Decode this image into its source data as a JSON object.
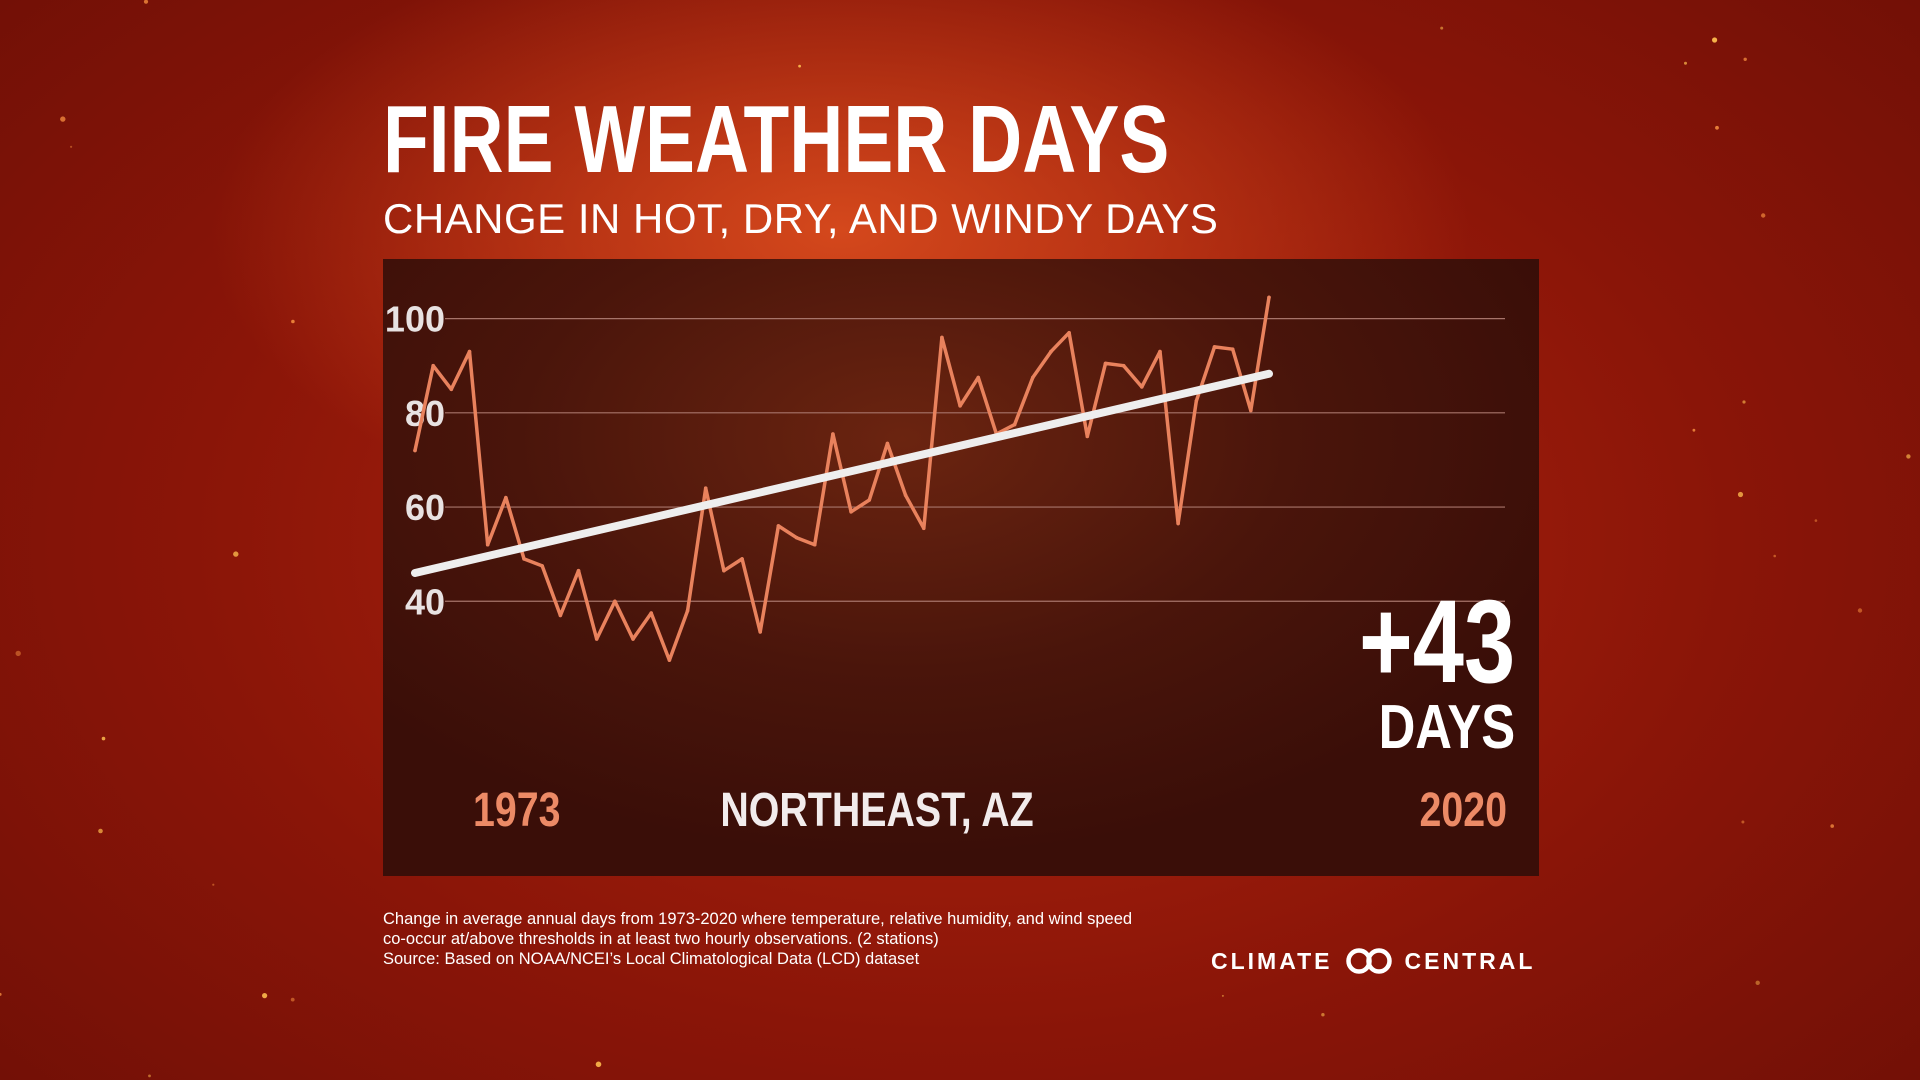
{
  "title": "FIRE WEATHER DAYS",
  "subtitle": "CHANGE IN HOT, DRY, AND WINDY DAYS",
  "colors": {
    "data_line": "#e9825d",
    "trend_line": "#eeeeee",
    "year_label": "#ec8a66",
    "region_label": "#f2ecec",
    "tick_label": "#e8e2e2",
    "gridline": "#a7746a"
  },
  "chart_data": {
    "type": "line",
    "title": "",
    "xlabel": "NORTHEAST, AZ",
    "ylabel": "",
    "xlim": [
      1973,
      2020
    ],
    "ylim": [
      20,
      110
    ],
    "y_ticks": [
      40,
      60,
      80,
      100
    ],
    "grid": true,
    "x_start_label": "1973",
    "x_end_label": "2020",
    "series": [
      {
        "x": [
          1973,
          1974,
          1975,
          1976,
          1977,
          1978,
          1979,
          1980,
          1981,
          1982,
          1983,
          1984,
          1985,
          1986,
          1987,
          1988,
          1989,
          1990,
          1991,
          1992,
          1993,
          1994,
          1995,
          1996,
          1997,
          1998,
          1999,
          2000,
          2001,
          2002,
          2003,
          2004,
          2005,
          2006,
          2007,
          2008,
          2009,
          2010,
          2011,
          2012,
          2013,
          2014,
          2015,
          2016,
          2017,
          2018,
          2019,
          2020
        ],
        "values": [
          72,
          90,
          85,
          93,
          52,
          62,
          49,
          47.5,
          37,
          46.5,
          32,
          40,
          32,
          37.5,
          27.5,
          38,
          64,
          46.5,
          49,
          33.5,
          56,
          53.5,
          52,
          75.5,
          59,
          61.5,
          73.5,
          62.5,
          55.5,
          96,
          81.5,
          87.5,
          75.5,
          77.5,
          87.5,
          93,
          97,
          75,
          90.5,
          90,
          85.5,
          93,
          56.5,
          82.5,
          94,
          93.5,
          80.5,
          104.5
        ]
      }
    ],
    "trend": {
      "x": [
        1973,
        2020
      ],
      "values": [
        46,
        88.3
      ]
    },
    "annotation": {
      "value": "+43",
      "unit": "DAYS"
    }
  },
  "footer": {
    "line1": "Change in average annual days from 1973-2020 where temperature, relative humidity, and wind speed",
    "line2": "co-occur at/above thresholds in at least two hourly observations.  (2 stations)",
    "line3": "Source: Based on NOAA/NCEI’s Local Climatological Data (LCD) dataset"
  },
  "logo": {
    "left": "CLIMATE",
    "right": "CENTRAL",
    "icon": "climate-central-rings-icon"
  }
}
